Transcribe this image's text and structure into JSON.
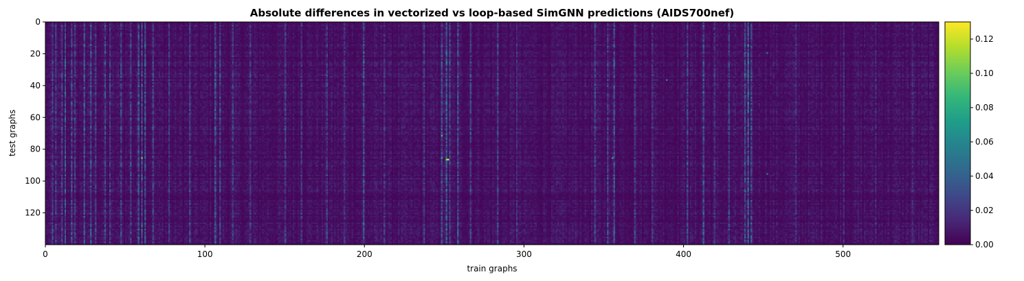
{
  "chart_data": {
    "type": "heatmap",
    "title": "Absolute differences in vectorized vs loop-based SimGNN predictions (AIDS700nef)",
    "xlabel": "train graphs",
    "ylabel": "test graphs",
    "n_cols": 560,
    "n_rows": 140,
    "xlim": [
      0,
      560
    ],
    "ylim": [
      140,
      0
    ],
    "x_ticks": [
      0,
      100,
      200,
      300,
      400,
      500
    ],
    "y_ticks": [
      0,
      20,
      40,
      60,
      80,
      100,
      120
    ],
    "colormap": "viridis",
    "value_range": [
      0.0,
      0.13
    ],
    "colorbar_ticks": [
      "0.00",
      "0.02",
      "0.04",
      "0.06",
      "0.08",
      "0.10",
      "0.12"
    ],
    "colorbar_tick_values": [
      0.0,
      0.02,
      0.04,
      0.06,
      0.08,
      0.1,
      0.12
    ],
    "typical_value": 0.005,
    "bright_columns": [
      {
        "col": 4,
        "value": 0.022
      },
      {
        "col": 6,
        "value": 0.018
      },
      {
        "col": 10,
        "value": 0.02
      },
      {
        "col": 12,
        "value": 0.028
      },
      {
        "col": 16,
        "value": 0.022
      },
      {
        "col": 18,
        "value": 0.02
      },
      {
        "col": 24,
        "value": 0.026
      },
      {
        "col": 28,
        "value": 0.024
      },
      {
        "col": 31,
        "value": 0.018
      },
      {
        "col": 37,
        "value": 0.024
      },
      {
        "col": 40,
        "value": 0.02
      },
      {
        "col": 47,
        "value": 0.02
      },
      {
        "col": 53,
        "value": 0.02
      },
      {
        "col": 58,
        "value": 0.028
      },
      {
        "col": 60,
        "value": 0.032
      },
      {
        "col": 62,
        "value": 0.024
      },
      {
        "col": 67,
        "value": 0.02
      },
      {
        "col": 77,
        "value": 0.018
      },
      {
        "col": 90,
        "value": 0.018
      },
      {
        "col": 106,
        "value": 0.026
      },
      {
        "col": 109,
        "value": 0.02
      },
      {
        "col": 117,
        "value": 0.018
      },
      {
        "col": 128,
        "value": 0.016
      },
      {
        "col": 150,
        "value": 0.02
      },
      {
        "col": 160,
        "value": 0.016
      },
      {
        "col": 176,
        "value": 0.018
      },
      {
        "col": 187,
        "value": 0.016
      },
      {
        "col": 199,
        "value": 0.026
      },
      {
        "col": 212,
        "value": 0.016
      },
      {
        "col": 237,
        "value": 0.018
      },
      {
        "col": 248,
        "value": 0.024
      },
      {
        "col": 251,
        "value": 0.03
      },
      {
        "col": 253,
        "value": 0.026
      },
      {
        "col": 258,
        "value": 0.024
      },
      {
        "col": 266,
        "value": 0.02
      },
      {
        "col": 283,
        "value": 0.02
      },
      {
        "col": 295,
        "value": 0.016
      },
      {
        "col": 344,
        "value": 0.02
      },
      {
        "col": 352,
        "value": 0.02
      },
      {
        "col": 356,
        "value": 0.024
      },
      {
        "col": 369,
        "value": 0.018
      },
      {
        "col": 380,
        "value": 0.016
      },
      {
        "col": 402,
        "value": 0.022
      },
      {
        "col": 412,
        "value": 0.026
      },
      {
        "col": 419,
        "value": 0.016
      },
      {
        "col": 428,
        "value": 0.02
      },
      {
        "col": 438,
        "value": 0.026
      },
      {
        "col": 440,
        "value": 0.03
      },
      {
        "col": 442,
        "value": 0.024
      },
      {
        "col": 470,
        "value": 0.014
      },
      {
        "col": 500,
        "value": 0.014
      },
      {
        "col": 520,
        "value": 0.012
      },
      {
        "col": 543,
        "value": 0.012
      }
    ],
    "hotspots": [
      {
        "col": 60,
        "row": 85,
        "value": 0.1
      },
      {
        "col": 248,
        "row": 71,
        "value": 0.09
      },
      {
        "col": 248,
        "row": 85,
        "value": 0.08
      },
      {
        "col": 251,
        "row": 86,
        "value": 0.11
      },
      {
        "col": 252,
        "row": 86,
        "value": 0.12
      },
      {
        "col": 355,
        "row": 85,
        "value": 0.08
      },
      {
        "col": 389,
        "row": 36,
        "value": 0.06
      },
      {
        "col": 452,
        "row": 19,
        "value": 0.05
      },
      {
        "col": 452,
        "row": 95,
        "value": 0.05
      }
    ]
  }
}
